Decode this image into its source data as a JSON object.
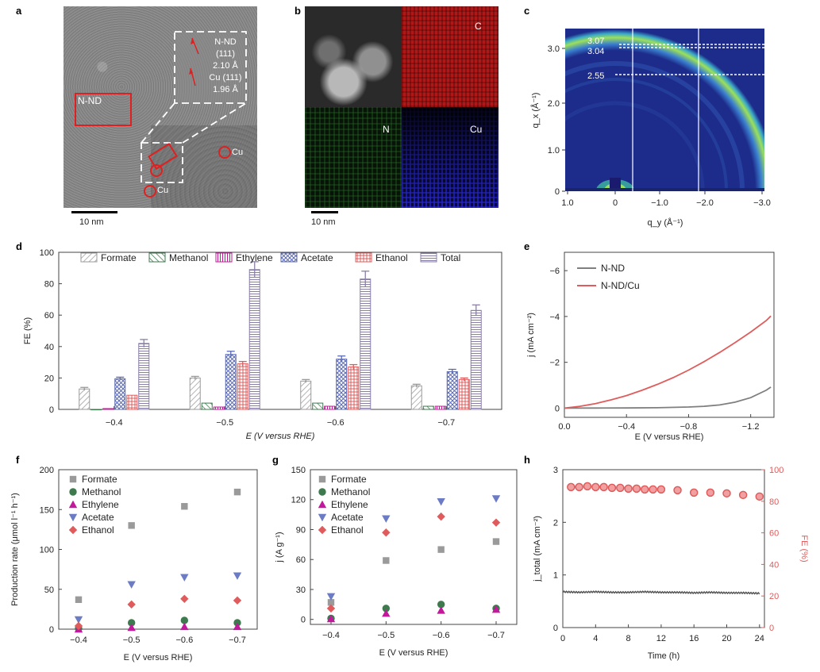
{
  "panels": {
    "a": {
      "label": "a",
      "region_label": "N-ND",
      "cu_label_1": "Cu",
      "cu_label_2": "Cu",
      "inset_lines": [
        "N-ND",
        "(111)",
        "2.10 Å",
        "Cu (111)",
        "1.96 Å"
      ],
      "scale_bar": "10 nm"
    },
    "b": {
      "label": "b",
      "map_labels": {
        "c": "C",
        "n": "N",
        "cu": "Cu"
      },
      "scale_bar": "10 nm"
    },
    "c": {
      "label": "c",
      "d_spacings": [
        "3.07",
        "3.04",
        "2.55"
      ],
      "ylabel": "q_x (Å⁻¹)",
      "xlabel": "q_y (Å⁻¹)",
      "yticks": [
        "3.0",
        "2.0",
        "1.0",
        "0"
      ],
      "xticks": [
        "1.0",
        "0",
        "−1.0",
        "−2.0",
        "−3.0"
      ]
    },
    "d": {
      "label": "d"
    },
    "e": {
      "label": "e"
    },
    "f": {
      "label": "f"
    },
    "g": {
      "label": "g"
    },
    "h": {
      "label": "h"
    }
  },
  "chart_data": [
    {
      "id": "d",
      "type": "bar",
      "ylabel": "FE (%)",
      "xlabel": "E (V versus RHE)",
      "ylim": [
        0,
        100
      ],
      "yticks": [
        "0",
        "20",
        "40",
        "60",
        "80",
        "100"
      ],
      "categories": [
        "−0.4",
        "−0.5",
        "−0.6",
        "−0.7"
      ],
      "series": [
        {
          "name": "Formate",
          "values": [
            13,
            20,
            18,
            15
          ],
          "errors": [
            1,
            1,
            1,
            1
          ],
          "color": "#9a9a9a"
        },
        {
          "name": "Methanol",
          "values": [
            0,
            4,
            4,
            2
          ],
          "errors": [
            0,
            0,
            0,
            0
          ],
          "color": "#3d7a4e"
        },
        {
          "name": "Ethylene",
          "values": [
            0.5,
            1.5,
            2,
            2
          ],
          "errors": [
            0,
            0,
            0,
            0
          ],
          "color": "#c2189b"
        },
        {
          "name": "Acetate",
          "values": [
            19.5,
            35,
            32,
            24
          ],
          "errors": [
            1,
            2,
            2,
            1.5
          ],
          "color": "#5c6bb0"
        },
        {
          "name": "Ethanol",
          "values": [
            9,
            29,
            27,
            19
          ],
          "errors": [
            0,
            1.5,
            1.5,
            1
          ],
          "color": "#e05c5c"
        },
        {
          "name": "Total",
          "values": [
            42,
            89,
            83,
            63
          ],
          "errors": [
            2.5,
            5,
            5,
            3.5
          ],
          "color": "#8a7fa8"
        }
      ]
    },
    {
      "id": "e",
      "type": "line",
      "ylabel": "j (mA cm⁻²)",
      "xlabel": "E (V versus RHE)",
      "xlim": [
        0,
        -1.35
      ],
      "ylim": [
        0.4,
        -6.8
      ],
      "xticks": [
        "0.0",
        "−0.4",
        "−0.8",
        "−1.2"
      ],
      "yticks": [
        "0",
        "−2",
        "−4",
        "−6"
      ],
      "series": [
        {
          "name": "N-ND",
          "color": "#7f7f7f",
          "x": [
            0,
            -0.2,
            -0.4,
            -0.6,
            -0.8,
            -0.9,
            -1.0,
            -1.1,
            -1.2,
            -1.3,
            -1.33
          ],
          "y": [
            0,
            -0.005,
            -0.01,
            -0.02,
            -0.05,
            -0.08,
            -0.14,
            -0.26,
            -0.46,
            -0.78,
            -0.92
          ]
        },
        {
          "name": "N-ND/Cu",
          "color": "#e05c5c",
          "x": [
            0,
            -0.1,
            -0.2,
            -0.3,
            -0.4,
            -0.5,
            -0.6,
            -0.7,
            -0.8,
            -0.9,
            -1.0,
            -1.1,
            -1.2,
            -1.3,
            -1.33
          ],
          "y": [
            0,
            -0.08,
            -0.2,
            -0.36,
            -0.55,
            -0.78,
            -1.04,
            -1.33,
            -1.66,
            -2.03,
            -2.43,
            -2.86,
            -3.32,
            -3.82,
            -4.02
          ]
        }
      ]
    },
    {
      "id": "f",
      "type": "scatter",
      "ylabel": "Production rate (μmol l⁻¹ h⁻¹)",
      "xlabel": "E (V versus RHE)",
      "ylim": [
        0,
        200
      ],
      "yticks": [
        "0",
        "50",
        "100",
        "150",
        "200"
      ],
      "categories": [
        "−0.4",
        "−0.5",
        "−0.6",
        "−0.7"
      ],
      "series": [
        {
          "name": "Formate",
          "marker": "square",
          "color": "#9a9a9a",
          "values": [
            37,
            130,
            154,
            172
          ]
        },
        {
          "name": "Methanol",
          "marker": "circle",
          "color": "#3d7a4e",
          "values": [
            1,
            8,
            11,
            8
          ]
        },
        {
          "name": "Ethylene",
          "marker": "triangle-up",
          "color": "#c2189b",
          "values": [
            0,
            2,
            3,
            3
          ]
        },
        {
          "name": "Acetate",
          "marker": "triangle-down",
          "color": "#6b7bc4",
          "values": [
            12,
            56,
            65,
            67
          ]
        },
        {
          "name": "Ethanol",
          "marker": "diamond",
          "color": "#e05c5c",
          "values": [
            4,
            31,
            38,
            36
          ]
        }
      ]
    },
    {
      "id": "g",
      "type": "scatter",
      "ylabel": "j (A g⁻¹)",
      "xlabel": "E (V versus RHE)",
      "ylim": [
        -5,
        150
      ],
      "yticks": [
        "0",
        "30",
        "60",
        "90",
        "120",
        "150"
      ],
      "categories": [
        "−0.4",
        "−0.5",
        "−0.6",
        "−0.7"
      ],
      "series": [
        {
          "name": "Formate",
          "marker": "square",
          "color": "#9a9a9a",
          "values": [
            17,
            59,
            70,
            78
          ]
        },
        {
          "name": "Methanol",
          "marker": "circle",
          "color": "#3d7a4e",
          "values": [
            1,
            11,
            15,
            11
          ]
        },
        {
          "name": "Ethylene",
          "marker": "triangle-up",
          "color": "#c2189b",
          "values": [
            0.5,
            6,
            9,
            10
          ]
        },
        {
          "name": "Acetate",
          "marker": "triangle-down",
          "color": "#6b7bc4",
          "values": [
            23,
            101,
            118,
            121
          ]
        },
        {
          "name": "Ethanol",
          "marker": "diamond",
          "color": "#e05c5c",
          "values": [
            11,
            87,
            103,
            97
          ]
        }
      ]
    },
    {
      "id": "h",
      "type": "line",
      "ylabel_left": "j_total (mA cm⁻²)",
      "ylabel_right": "FE (%)",
      "xlabel": "Time (h)",
      "xlim": [
        0,
        24.6
      ],
      "ylim_left": [
        0,
        3
      ],
      "ylim_right": [
        0,
        100
      ],
      "xticks": [
        "0",
        "4",
        "8",
        "12",
        "16",
        "20",
        "24"
      ],
      "yticks_left": [
        "0",
        "1",
        "2",
        "3"
      ],
      "yticks_right": [
        "0",
        "20",
        "40",
        "60",
        "80",
        "100"
      ],
      "series": [
        {
          "name": "j_total",
          "axis": "left",
          "color": "#555555",
          "x": [
            0,
            2,
            4,
            6,
            8,
            10,
            12,
            14,
            16,
            18,
            20,
            22,
            24
          ],
          "y": [
            0.68,
            0.67,
            0.68,
            0.67,
            0.67,
            0.68,
            0.67,
            0.67,
            0.66,
            0.67,
            0.66,
            0.66,
            0.65
          ]
        },
        {
          "name": "FE",
          "axis": "right",
          "color": "#e05c5c",
          "x": [
            1,
            2,
            3,
            4,
            5,
            6,
            7,
            8,
            9,
            10,
            11,
            12,
            14,
            16,
            18,
            20,
            22,
            24
          ],
          "y": [
            89,
            89,
            89.5,
            89,
            89,
            88.5,
            88.5,
            88,
            88,
            87.5,
            87.5,
            87.5,
            87,
            85.5,
            85.5,
            85,
            84,
            83
          ]
        }
      ]
    }
  ]
}
